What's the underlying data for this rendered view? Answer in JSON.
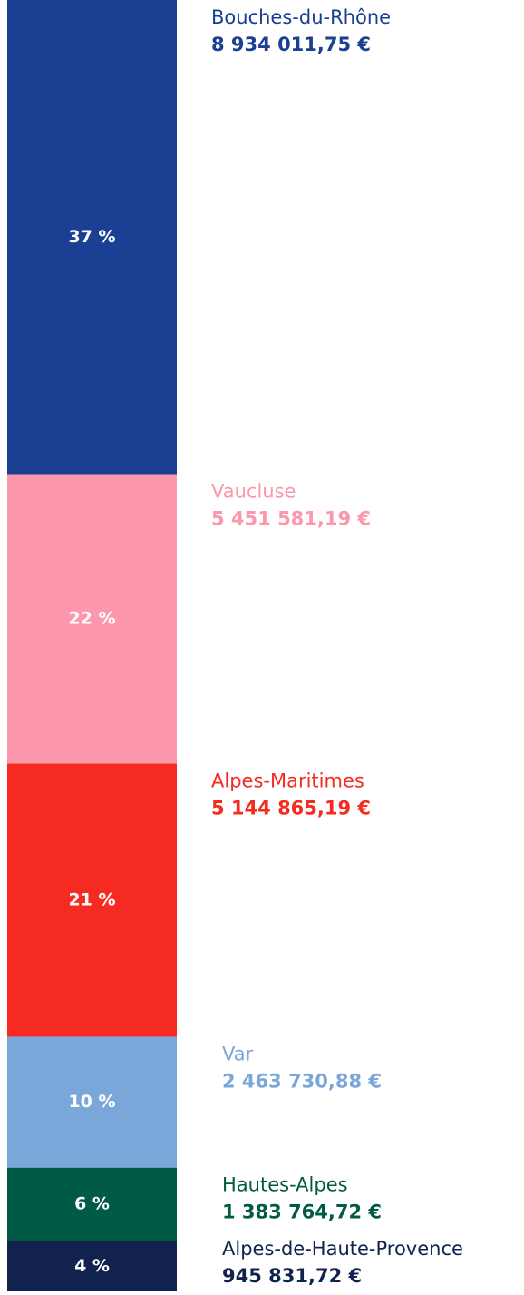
{
  "chart_data": {
    "type": "stacked-column",
    "categories": [
      "Bouches-du-Rhône",
      "Vaucluse",
      "Alpes-Maritimes",
      "Var",
      "Hautes-Alpes",
      "Alpes-de-Haute-Provence"
    ],
    "values": [
      8934011.75,
      5451581.19,
      5144865.19,
      2463730.88,
      1383764.72,
      945831.72
    ],
    "value_labels": [
      "8 934 011,75 €",
      "5 451 581,19 €",
      "5 144 865,19 €",
      "2 463 730,88 €",
      "1 383 764,72 €",
      "945 831,72 €"
    ],
    "shares": [
      37,
      22,
      21,
      10,
      6,
      4
    ],
    "share_labels": [
      "37 %",
      "22 %",
      "21 %",
      "10 %",
      "6 %",
      "4 %"
    ],
    "colors": [
      "#1b3f93",
      "#fd97ab",
      "#f52b21",
      "#7aa6d9",
      "#005a45",
      "#11224f"
    ]
  }
}
